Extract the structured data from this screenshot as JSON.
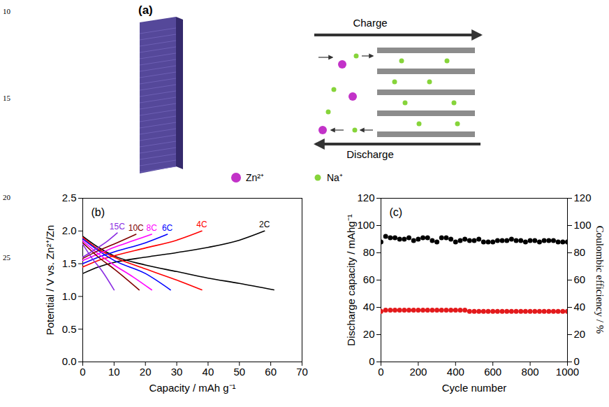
{
  "line_numbers": [
    "10",
    "15",
    "20",
    "25"
  ],
  "diagram": {
    "label": "(a)",
    "arrows": [
      {
        "label": "Charge",
        "direction": "right"
      },
      {
        "label": "Discharge",
        "direction": "left"
      }
    ],
    "legend": [
      {
        "label": "Zn²⁺",
        "color": "#c232c8"
      },
      {
        "label": "Na⁺",
        "color": "#86d43a"
      }
    ]
  },
  "chart_data": [
    {
      "type": "line",
      "title": "(b)",
      "x_label": "Capacity / mAh g⁻¹",
      "y_label": "Potential / V vs. Zn²⁺/Zn",
      "xlim": [
        0,
        70
      ],
      "xticks": [
        0,
        10,
        20,
        30,
        40,
        50,
        60,
        70
      ],
      "ylim": [
        0,
        2.5
      ],
      "yticks": [
        {
          "value": 0,
          "label": "0.0"
        },
        0.5,
        {
          "value": 1,
          "label": "1.0"
        },
        1.5,
        {
          "value": 2,
          "label": "2.0"
        },
        2.5
      ],
      "grid": false,
      "data_labels": true,
      "series": [
        {
          "name": "2C",
          "color": "#000000",
          "charge": {
            "x": [
              0,
              5,
              10,
              20,
              30,
              40,
              50,
              58
            ],
            "y": [
              1.35,
              1.45,
              1.52,
              1.6,
              1.67,
              1.75,
              1.86,
              2.0
            ]
          },
          "discharge": {
            "x": [
              0,
              5,
              10,
              20,
              30,
              40,
              50,
              61
            ],
            "y": [
              1.92,
              1.75,
              1.62,
              1.48,
              1.38,
              1.28,
              1.2,
              1.1
            ]
          }
        },
        {
          "name": "4C",
          "color": "#ff0000",
          "charge": {
            "x": [
              0,
              5,
              10,
              20,
              30,
              38
            ],
            "y": [
              1.45,
              1.55,
              1.62,
              1.74,
              1.86,
              2.0
            ]
          },
          "discharge": {
            "x": [
              0,
              5,
              10,
              20,
              30,
              38
            ],
            "y": [
              1.9,
              1.72,
              1.6,
              1.42,
              1.25,
              1.1
            ]
          }
        },
        {
          "name": "6C",
          "color": "#0000ff",
          "charge": {
            "x": [
              0,
              5,
              10,
              20,
              27
            ],
            "y": [
              1.5,
              1.6,
              1.68,
              1.82,
              1.95
            ]
          },
          "discharge": {
            "x": [
              0,
              5,
              10,
              20,
              28
            ],
            "y": [
              1.88,
              1.7,
              1.55,
              1.35,
              1.1
            ]
          }
        },
        {
          "name": "8C",
          "color": "#ff00ff",
          "charge": {
            "x": [
              0,
              5,
              10,
              16,
              22
            ],
            "y": [
              1.55,
              1.65,
              1.75,
              1.85,
              1.95
            ]
          },
          "discharge": {
            "x": [
              0,
              5,
              10,
              16,
              22
            ],
            "y": [
              1.85,
              1.65,
              1.48,
              1.3,
              1.1
            ]
          }
        },
        {
          "name": "10C",
          "color": "#800000",
          "charge": {
            "x": [
              0,
              5,
              10,
              17
            ],
            "y": [
              1.58,
              1.7,
              1.8,
              1.95
            ]
          },
          "discharge": {
            "x": [
              0,
              5,
              10,
              18
            ],
            "y": [
              1.82,
              1.6,
              1.42,
              1.1
            ]
          }
        },
        {
          "name": "15C",
          "color": "#8a2be2",
          "charge": {
            "x": [
              0,
              4,
              8,
              11
            ],
            "y": [
              1.6,
              1.72,
              1.85,
              1.97
            ]
          },
          "discharge": {
            "x": [
              0,
              3,
              6,
              10
            ],
            "y": [
              1.8,
              1.58,
              1.4,
              1.1
            ]
          }
        }
      ]
    },
    {
      "type": "scatter",
      "title": "(c)",
      "x_label": "Cycle number",
      "y_label": "Discharge capacity / mAhg⁻¹",
      "y2_label": "Coulombic efficiency / %",
      "xlim": [
        0,
        1000
      ],
      "xticks": [
        0,
        200,
        400,
        600,
        800,
        1000
      ],
      "ylim": [
        0,
        120
      ],
      "yticks": [
        0,
        20,
        40,
        60,
        80,
        100,
        120
      ],
      "y2lim": [
        0,
        120
      ],
      "y2ticks": [
        0,
        20,
        40,
        60,
        80,
        100,
        120
      ],
      "grid": false,
      "x": [
        0,
        25,
        50,
        75,
        100,
        125,
        150,
        175,
        200,
        225,
        250,
        275,
        300,
        325,
        350,
        375,
        400,
        425,
        450,
        475,
        500,
        525,
        550,
        575,
        600,
        625,
        650,
        675,
        700,
        725,
        750,
        775,
        800,
        825,
        850,
        875,
        900,
        925,
        950,
        975,
        1000
      ],
      "series": [
        {
          "color": "#e31a1c",
          "marker": "circle",
          "axis": "y",
          "values": [
            37,
            38,
            38,
            38,
            38,
            38,
            38,
            38,
            38,
            38,
            38,
            38,
            38,
            38,
            38,
            38,
            38,
            38,
            38,
            37,
            37,
            37,
            37,
            37,
            37,
            37,
            37,
            37,
            37,
            37,
            37,
            37,
            37,
            37,
            37,
            37,
            37,
            37,
            37,
            37,
            37
          ]
        },
        {
          "color": "#000000",
          "marker": "circle",
          "axis": "y2",
          "values": [
            88,
            92,
            91,
            91,
            90,
            90,
            91,
            89,
            90,
            91,
            91,
            89,
            88,
            91,
            91,
            90,
            88,
            89,
            90,
            89,
            89,
            90,
            88,
            88,
            88,
            89,
            89,
            89,
            90,
            89,
            89,
            88,
            89,
            89,
            88,
            89,
            89,
            89,
            88,
            88,
            88
          ]
        }
      ]
    }
  ]
}
